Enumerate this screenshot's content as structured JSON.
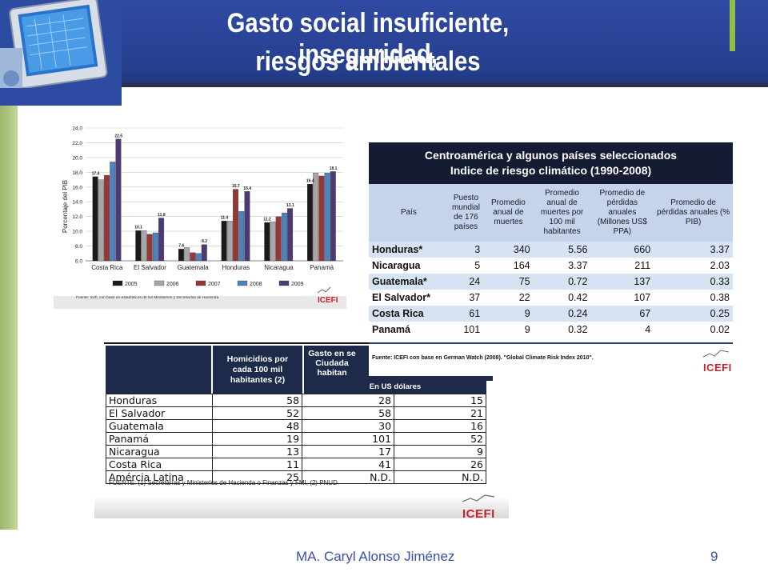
{
  "slide": {
    "title_line1": "Gasto social insuficiente, inseguridad,",
    "title_line2": "riesgos ambientales",
    "author": "MA. Caryl Alonso Jiménez",
    "page_number": "9"
  },
  "colors": {
    "header": "#2f4aa2",
    "accent_green": "#8fbf4a",
    "footer_text": "#3a4fa6",
    "logo_red": "#cc1f2a"
  },
  "chart_data": {
    "type": "bar",
    "ylabel": "Porcentaje del PIB",
    "ylim": [
      6.0,
      24.0
    ],
    "yticks": [
      "6.0",
      "8.0",
      "10.0",
      "12.0",
      "14.0",
      "16.0",
      "18.0",
      "20.0",
      "22.0",
      "24.0"
    ],
    "categories": [
      "Costa Rica",
      "El Salvador",
      "Guatemala",
      "Honduras",
      "Nicaragua",
      "Panamá"
    ],
    "series": [
      {
        "name": "2005",
        "color": "#1a1a1a",
        "values": [
          17.4,
          10.1,
          7.6,
          11.4,
          11.2,
          16.4
        ]
      },
      {
        "name": "2006",
        "color": "#a6a6a6",
        "values": [
          17.0,
          10.1,
          7.8,
          11.4,
          11.3,
          17.9
        ]
      },
      {
        "name": "2007",
        "color": "#953735",
        "values": [
          17.6,
          9.6,
          7.1,
          15.7,
          12.0,
          17.5
        ]
      },
      {
        "name": "2008",
        "color": "#4f81bd",
        "values": [
          19.4,
          9.8,
          7.0,
          12.7,
          12.5,
          17.9
        ]
      },
      {
        "name": "2009",
        "color": "#4b3a73",
        "values": [
          22.5,
          11.8,
          8.2,
          15.4,
          13.1,
          18.1
        ]
      }
    ],
    "data_labels": [
      {
        "category": "Costa Rica",
        "series": "2005",
        "text": "17.4"
      },
      {
        "category": "Costa Rica",
        "series": "2009",
        "text": "22.5"
      },
      {
        "category": "El Salvador",
        "series": "2005",
        "text": "10.1"
      },
      {
        "category": "El Salvador",
        "series": "2009",
        "text": "11.8"
      },
      {
        "category": "Guatemala",
        "series": "2005",
        "text": "7.6"
      },
      {
        "category": "Guatemala",
        "series": "2009",
        "text": "8.2"
      },
      {
        "category": "Honduras",
        "series": "2005",
        "text": "11.4"
      },
      {
        "category": "Honduras",
        "series": "2007",
        "text": "15.7"
      },
      {
        "category": "Honduras",
        "series": "2009",
        "text": "15.4"
      },
      {
        "category": "Nicaragua",
        "series": "2005",
        "text": "11.2"
      },
      {
        "category": "Nicaragua",
        "series": "2009",
        "text": "13.1"
      },
      {
        "category": "Panamá",
        "series": "2005",
        "text": "16.4"
      },
      {
        "category": "Panamá",
        "series": "2009",
        "text": "18.1"
      }
    ],
    "source": "Fuente: Icefi, con base en estadísticos de los Ministerios y Secretarías de Hacienda",
    "grid": true,
    "legend_position": "bottom"
  },
  "risk_table": {
    "title_line1": "Centroamérica y algunos países seleccionados",
    "title_line2": "Indice de riesgo climático (1990-2008)",
    "headers": [
      "País",
      "Puesto mundial de 176 países",
      "Promedio anual de muertes",
      "Promedio anual de muertes por 100 mil habitantes",
      "Promedio de pérdidas anuales (Millones US$ PPA)",
      "Promedio de pérdidas anuales (% PIB)"
    ],
    "rows": [
      [
        "Honduras*",
        "3",
        "340",
        "5.56",
        "660",
        "3.37"
      ],
      [
        "Nicaragua",
        "5",
        "164",
        "3.37",
        "211",
        "2.03"
      ],
      [
        "Guatemala*",
        "24",
        "75",
        "0.72",
        "137",
        "0.33"
      ],
      [
        "El Salvador*",
        "37",
        "22",
        "0.42",
        "107",
        "0.38"
      ],
      [
        "Costa Rica",
        "61",
        "9",
        "0.24",
        "67",
        "0.25"
      ],
      [
        "Panamá",
        "101",
        "9",
        "0.32",
        "4",
        "0.02"
      ]
    ],
    "source": "Fuente: ICEFI con base en German Watch (2008). \"Global Climate Risk Index 2010\"."
  },
  "homicide_table": {
    "header_col1": "Homicidios por cada 100 mil habitantes (2)",
    "header_col2_partial": "Gasto en se Ciudada habitan",
    "subheader": "En US dólares",
    "rows": [
      [
        "Honduras",
        "58",
        "28",
        "15"
      ],
      [
        "El Salvador",
        "52",
        "58",
        "21"
      ],
      [
        "Guatemala",
        "48",
        "30",
        "16"
      ],
      [
        "Panamá",
        "19",
        "101",
        "52"
      ],
      [
        "Nicaragua",
        "13",
        "17",
        "9"
      ],
      [
        "Costa Rica",
        "11",
        "41",
        "26"
      ],
      [
        "Amércia Latina",
        "25",
        "N.D.",
        "N.D."
      ]
    ],
    "source": "FUENTE: (1) Secretarías y Ministerios de Hacienda o Finanzas y FMI, (2) PNUD"
  },
  "logos": {
    "icefi": "ICEFI"
  }
}
